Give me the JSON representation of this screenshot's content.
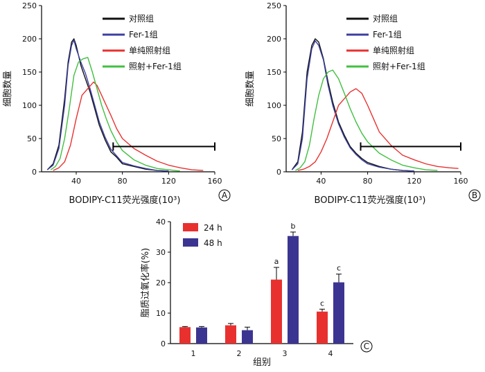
{
  "chart_data": [
    {
      "type": "line",
      "panel_label": "A",
      "xlabel": "BODIPY-C11荧光强度(10³)",
      "ylabel": "细胞数量",
      "xlim": [
        10,
        160
      ],
      "ylim": [
        0,
        250
      ],
      "x_ticks": [
        "40",
        "80",
        "120",
        "160"
      ],
      "y_ticks": [
        "0",
        "50",
        "100",
        "150",
        "200",
        "250"
      ],
      "legend_position": "top-right",
      "gate": {
        "x": [
          72,
          160
        ],
        "y": 38
      },
      "series": [
        {
          "name": "对照组",
          "color": "#111111",
          "peak": 200,
          "x": [
            15,
            20,
            25,
            30,
            33,
            36,
            38,
            40,
            44,
            48,
            52,
            56,
            60,
            65,
            70,
            75,
            80,
            90,
            100,
            110,
            120
          ],
          "y": [
            3,
            12,
            40,
            110,
            165,
            195,
            200,
            190,
            160,
            140,
            120,
            95,
            70,
            48,
            30,
            22,
            12,
            8,
            4,
            2,
            1
          ]
        },
        {
          "name": "Fer-1组",
          "color": "#3b3fa0",
          "peak": 198,
          "x": [
            15,
            20,
            25,
            30,
            33,
            36,
            38,
            40,
            44,
            48,
            52,
            56,
            60,
            65,
            70,
            75,
            80,
            90,
            100,
            110,
            120
          ],
          "y": [
            3,
            10,
            35,
            100,
            160,
            190,
            198,
            185,
            165,
            148,
            125,
            100,
            75,
            52,
            34,
            24,
            14,
            9,
            5,
            2,
            1
          ]
        },
        {
          "name": "单纯照射组",
          "color": "#e8312f",
          "peak": 135,
          "x": [
            20,
            25,
            30,
            35,
            40,
            45,
            50,
            55,
            58,
            62,
            66,
            70,
            75,
            80,
            90,
            100,
            110,
            120,
            130,
            140,
            150
          ],
          "y": [
            2,
            6,
            15,
            40,
            80,
            115,
            125,
            135,
            130,
            115,
            100,
            85,
            65,
            50,
            35,
            25,
            16,
            10,
            6,
            3,
            2
          ]
        },
        {
          "name": "照射+Fer-1组",
          "color": "#3fbf3f",
          "peak": 172,
          "x": [
            18,
            22,
            26,
            30,
            34,
            38,
            42,
            46,
            50,
            54,
            58,
            62,
            66,
            70,
            75,
            80,
            90,
            100,
            110,
            120,
            130
          ],
          "y": [
            3,
            8,
            20,
            50,
            95,
            145,
            165,
            170,
            172,
            150,
            125,
            100,
            80,
            62,
            45,
            32,
            18,
            10,
            5,
            3,
            1
          ]
        }
      ]
    },
    {
      "type": "line",
      "panel_label": "B",
      "xlabel": "BODIPY-C11荧光强度(10³)",
      "ylabel": "细胞数量",
      "xlim": [
        10,
        160
      ],
      "ylim": [
        0,
        250
      ],
      "x_ticks": [
        "40",
        "80",
        "120",
        "160"
      ],
      "y_ticks": [
        "0",
        "50",
        "100",
        "150",
        "200",
        "250"
      ],
      "legend_position": "top-right",
      "gate": {
        "x": [
          74,
          160
        ],
        "y": 38
      },
      "series": [
        {
          "name": "对照组",
          "color": "#111111",
          "peak": 200,
          "x": [
            15,
            20,
            24,
            28,
            32,
            35,
            38,
            42,
            46,
            50,
            55,
            60,
            65,
            70,
            75,
            80,
            90,
            100,
            110,
            120
          ],
          "y": [
            3,
            15,
            60,
            150,
            190,
            200,
            195,
            170,
            135,
            105,
            75,
            55,
            38,
            28,
            20,
            14,
            8,
            4,
            2,
            1
          ]
        },
        {
          "name": "Fer-1组",
          "color": "#3b3fa0",
          "peak": 197,
          "x": [
            15,
            20,
            24,
            28,
            32,
            35,
            38,
            42,
            46,
            50,
            55,
            60,
            65,
            70,
            75,
            80,
            90,
            100,
            110,
            120
          ],
          "y": [
            3,
            12,
            50,
            140,
            185,
            197,
            190,
            168,
            130,
            100,
            72,
            52,
            36,
            26,
            18,
            12,
            7,
            4,
            2,
            1
          ]
        },
        {
          "name": "单纯照射组",
          "color": "#e8312f",
          "peak": 125,
          "x": [
            20,
            25,
            30,
            35,
            40,
            45,
            50,
            55,
            60,
            65,
            70,
            75,
            80,
            85,
            90,
            100,
            110,
            120,
            130,
            140,
            150,
            158
          ],
          "y": [
            2,
            4,
            8,
            15,
            30,
            50,
            75,
            100,
            110,
            120,
            125,
            118,
            100,
            80,
            60,
            40,
            25,
            18,
            12,
            8,
            6,
            5
          ]
        },
        {
          "name": "照射+Fer-1组",
          "color": "#3fbf3f",
          "peak": 153,
          "x": [
            18,
            22,
            26,
            30,
            34,
            38,
            42,
            46,
            50,
            55,
            60,
            65,
            70,
            75,
            80,
            90,
            100,
            110,
            120,
            130,
            140
          ],
          "y": [
            2,
            6,
            15,
            40,
            80,
            115,
            140,
            150,
            153,
            140,
            118,
            95,
            75,
            58,
            45,
            28,
            18,
            10,
            6,
            3,
            2
          ]
        }
      ]
    },
    {
      "type": "bar",
      "panel_label": "C",
      "xlabel": "组别",
      "ylabel": "脂质过氧化率(%)",
      "ylim": [
        0,
        40
      ],
      "y_ticks": [
        "0",
        "10",
        "20",
        "30",
        "40"
      ],
      "categories": [
        "1",
        "2",
        "3",
        "4"
      ],
      "legend_position": "top-left",
      "series": [
        {
          "name": "24 h",
          "color": "#e8312f",
          "values": [
            5.4,
            6.0,
            21.0,
            10.5
          ],
          "errors": [
            0.2,
            0.6,
            4.0,
            0.8
          ],
          "labels": [
            "",
            "",
            "a",
            "c"
          ]
        },
        {
          "name": "48 h",
          "color": "#3b3591",
          "values": [
            5.3,
            4.4,
            35.3,
            20.1
          ],
          "errors": [
            0.3,
            1.0,
            1.3,
            2.7
          ],
          "labels": [
            "",
            "",
            "b",
            "c"
          ]
        }
      ]
    }
  ]
}
